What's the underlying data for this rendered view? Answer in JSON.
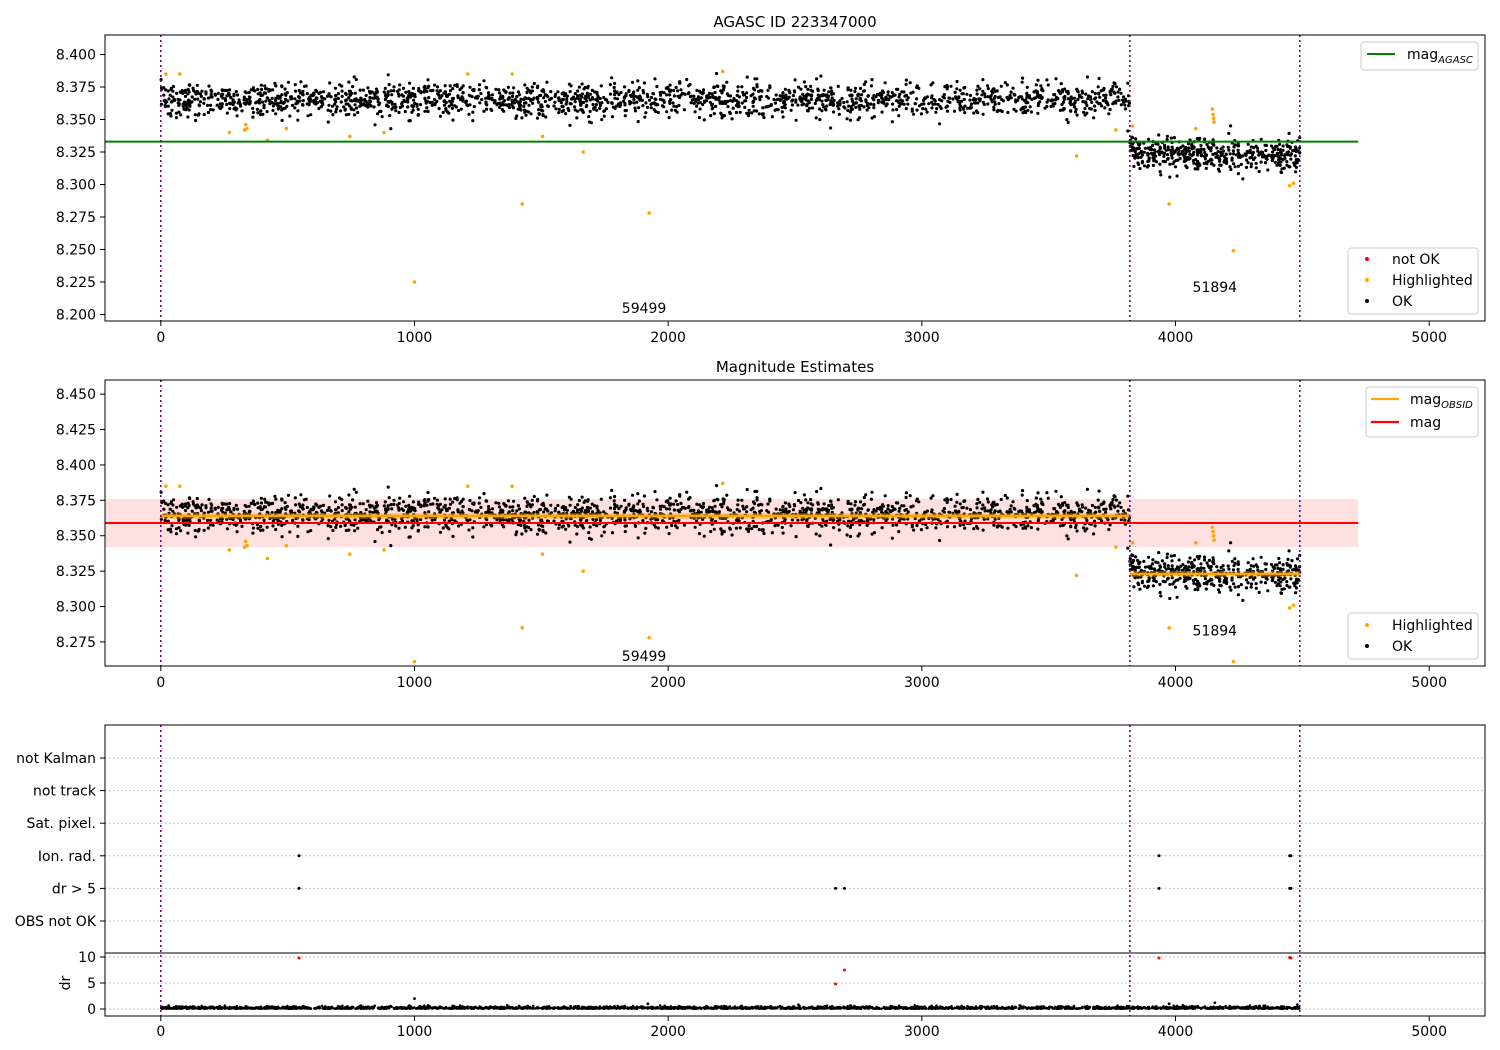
{
  "chart_data": [
    {
      "type": "scatter",
      "title": "AGASC ID 223347000",
      "xlim": [
        -220,
        5220
      ],
      "ylim": [
        8.195,
        8.415
      ],
      "xticks": [
        0,
        1000,
        2000,
        3000,
        4000,
        5000
      ],
      "yticks": [
        8.2,
        8.225,
        8.25,
        8.275,
        8.3,
        8.325,
        8.35,
        8.375,
        8.4
      ],
      "ytick_labels": [
        "8.200",
        "8.225",
        "8.250",
        "8.275",
        "8.300",
        "8.325",
        "8.350",
        "8.375",
        "8.400"
      ],
      "obsid_boundaries": [
        0,
        3820,
        4490
      ],
      "obsid_labels": [
        {
          "text": "59499",
          "x": 1905,
          "y": 8.205
        },
        {
          "text": "51894",
          "x": 4155,
          "y": 8.221
        }
      ],
      "reference_line": {
        "name": "mag_AGASC",
        "value": 8.333,
        "x_range": [
          -220,
          4720
        ],
        "color": "#008000"
      },
      "ok_segments": [
        {
          "x_start": 0,
          "x_end": 3820,
          "mean": 8.365,
          "scatter": 0.0065,
          "count": 1900,
          "color": "#000000"
        },
        {
          "x_start": 3820,
          "x_end": 4490,
          "mean": 8.323,
          "scatter": 0.0062,
          "count": 450,
          "color": "#000000"
        }
      ],
      "highlighted_points": [
        [
          20,
          8.385
        ],
        [
          75,
          8.385
        ],
        [
          270,
          8.34
        ],
        [
          330,
          8.342
        ],
        [
          335,
          8.346
        ],
        [
          340,
          8.343
        ],
        [
          420,
          8.334
        ],
        [
          495,
          8.343
        ],
        [
          745,
          8.337
        ],
        [
          880,
          8.34
        ],
        [
          1000,
          8.225
        ],
        [
          1210,
          8.385
        ],
        [
          1385,
          8.385
        ],
        [
          1425,
          8.285
        ],
        [
          1505,
          8.337
        ],
        [
          1665,
          8.325
        ],
        [
          1925,
          8.278
        ],
        [
          2215,
          8.387
        ],
        [
          3610,
          8.322
        ],
        [
          3765,
          8.342
        ],
        [
          3830,
          8.345
        ],
        [
          3975,
          8.285
        ],
        [
          4080,
          8.343
        ],
        [
          4145,
          8.358
        ],
        [
          4148,
          8.354
        ],
        [
          4150,
          8.351
        ],
        [
          4152,
          8.348
        ],
        [
          4228,
          8.249
        ],
        [
          4450,
          8.299
        ],
        [
          4465,
          8.301
        ]
      ],
      "legend": [
        {
          "label": "mag",
          "subscript": "AGASC",
          "marker": "line",
          "color": "#008000"
        }
      ],
      "legend2": [
        {
          "label": "not OK",
          "marker": "dot",
          "color": "#ff0000"
        },
        {
          "label": "Highlighted",
          "marker": "dot",
          "color": "#ffa500"
        },
        {
          "label": "OK",
          "marker": "dot",
          "color": "#000000"
        }
      ]
    },
    {
      "type": "scatter",
      "title": "Magnitude Estimates",
      "xlim": [
        -220,
        5220
      ],
      "ylim": [
        8.258,
        8.46
      ],
      "xticks": [
        0,
        1000,
        2000,
        3000,
        4000,
        5000
      ],
      "yticks": [
        8.275,
        8.3,
        8.325,
        8.35,
        8.375,
        8.4,
        8.425,
        8.45
      ],
      "ytick_labels": [
        "8.275",
        "8.300",
        "8.325",
        "8.350",
        "8.375",
        "8.400",
        "8.425",
        "8.450"
      ],
      "obsid_boundaries": [
        0,
        3820,
        4490
      ],
      "obsid_labels": [
        {
          "text": "59499",
          "x": 1905,
          "y": 8.265
        },
        {
          "text": "51894",
          "x": 4155,
          "y": 8.283
        }
      ],
      "mag_line": {
        "name": "mag",
        "value": 8.359,
        "band": [
          8.342,
          8.376
        ],
        "x_range": [
          -220,
          4720
        ],
        "color": "#ff0000",
        "band_color": "#ffcccc"
      },
      "obsid_mags": [
        {
          "x_start": 0,
          "x_end": 3820,
          "value": 8.364
        },
        {
          "x_start": 3820,
          "x_end": 4490,
          "value": 8.323
        }
      ],
      "ok_segments": [
        {
          "x_start": 0,
          "x_end": 3820,
          "mean": 8.365,
          "scatter": 0.0065,
          "count": 1900,
          "color": "#000000"
        },
        {
          "x_start": 3820,
          "x_end": 4490,
          "mean": 8.323,
          "scatter": 0.0062,
          "count": 450,
          "color": "#000000"
        }
      ],
      "highlighted_points": [
        [
          20,
          8.385
        ],
        [
          75,
          8.385
        ],
        [
          270,
          8.34
        ],
        [
          330,
          8.342
        ],
        [
          335,
          8.346
        ],
        [
          340,
          8.343
        ],
        [
          420,
          8.334
        ],
        [
          495,
          8.343
        ],
        [
          745,
          8.337
        ],
        [
          880,
          8.34
        ],
        [
          1000,
          8.261
        ],
        [
          1210,
          8.385
        ],
        [
          1385,
          8.385
        ],
        [
          1425,
          8.285
        ],
        [
          1505,
          8.337
        ],
        [
          1665,
          8.325
        ],
        [
          1925,
          8.278
        ],
        [
          2215,
          8.387
        ],
        [
          3610,
          8.322
        ],
        [
          3765,
          8.342
        ],
        [
          3830,
          8.345
        ],
        [
          3975,
          8.285
        ],
        [
          4080,
          8.345
        ],
        [
          4145,
          8.356
        ],
        [
          4148,
          8.353
        ],
        [
          4150,
          8.35
        ],
        [
          4152,
          8.347
        ],
        [
          4228,
          8.261
        ],
        [
          4450,
          8.299
        ],
        [
          4465,
          8.301
        ]
      ],
      "legend": [
        {
          "label": "mag",
          "subscript": "OBSID",
          "marker": "line",
          "color": "#ffa500"
        },
        {
          "label": "mag",
          "subscript": "",
          "marker": "line",
          "color": "#ff0000"
        }
      ],
      "legend2": [
        {
          "label": "Highlighted",
          "marker": "dot",
          "color": "#ffa500"
        },
        {
          "label": "OK",
          "marker": "dot",
          "color": "#000000"
        }
      ]
    },
    {
      "type": "scatter",
      "xlim": [
        -220,
        5220
      ],
      "xticks": [
        0,
        1000,
        2000,
        3000,
        4000,
        5000
      ],
      "obsid_boundaries": [
        0,
        3820,
        4490
      ],
      "flag_rows": [
        "not Kalman",
        "not track",
        "Sat. pixel.",
        "Ion. rad.",
        "dr > 5",
        "OBS not OK"
      ],
      "flag_points": [
        {
          "row": "Ion. rad.",
          "x": [
            545,
            3935,
            4450,
            4455
          ]
        },
        {
          "row": "dr > 5",
          "x": [
            545,
            2660,
            2695,
            3935,
            4450,
            4455
          ]
        }
      ],
      "dr_panel": {
        "ylabel": "dr",
        "ylim": [
          -0.5,
          10.5
        ],
        "yticks": [
          0,
          5,
          10
        ],
        "baseline_count": 2400,
        "outliers_ok": [
          [
            1000,
            2.0
          ],
          [
            1920,
            1.0
          ],
          [
            3975,
            1.0
          ],
          [
            4155,
            1.2
          ]
        ],
        "outliers_red": [
          [
            545,
            9.8
          ],
          [
            2660,
            4.8
          ],
          [
            2695,
            7.5
          ],
          [
            3935,
            9.8
          ],
          [
            4450,
            9.9
          ],
          [
            4455,
            9.8
          ]
        ]
      }
    }
  ]
}
